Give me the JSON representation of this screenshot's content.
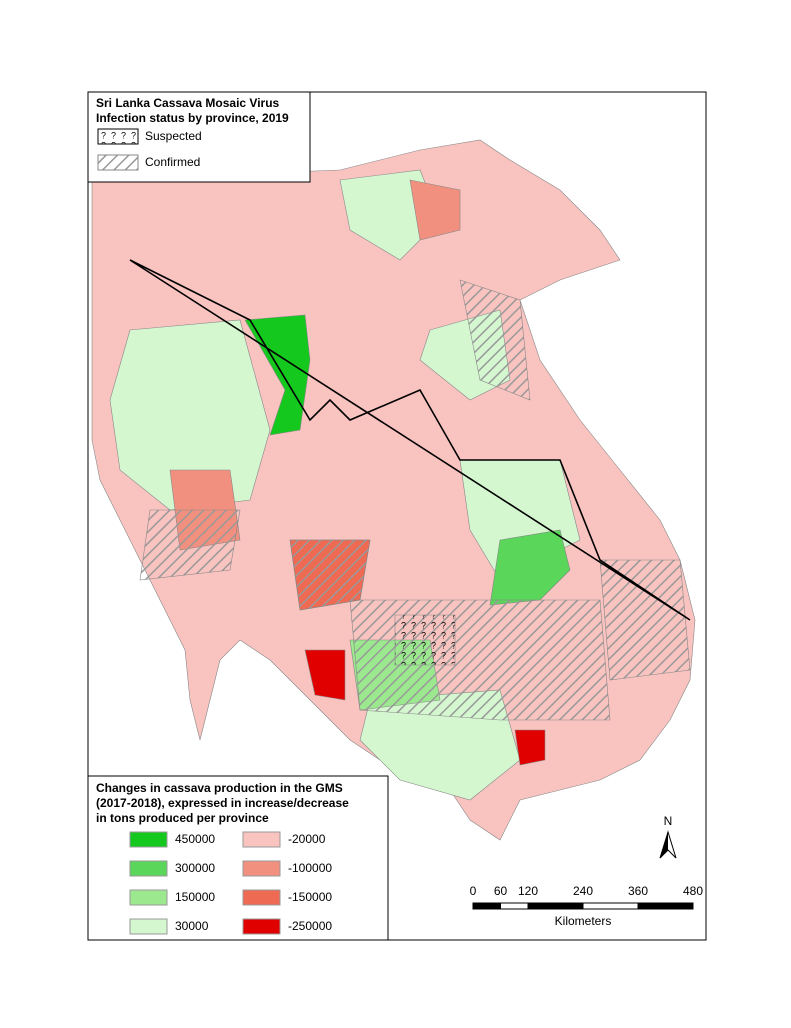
{
  "infection_legend": {
    "title_lines": [
      "Sri Lanka Cassava Mosaic Virus",
      "Infection status by province, 2019"
    ],
    "items": [
      {
        "label": "Suspected"
      },
      {
        "label": "Confirmed"
      }
    ]
  },
  "production_legend": {
    "title_lines": [
      "Changes in cassava production in the GMS",
      "(2017-2018), expressed in increase/decrease",
      "in tons produced per province"
    ],
    "items": [
      {
        "label": "450000",
        "color": "#14c81e"
      },
      {
        "label": "300000",
        "color": "#5ad65a"
      },
      {
        "label": "150000",
        "color": "#9be88f"
      },
      {
        "label": "30000",
        "color": "#d4f7d0"
      },
      {
        "label": "-20000",
        "color": "#f9c3c0"
      },
      {
        "label": "-100000",
        "color": "#f2907f"
      },
      {
        "label": "-150000",
        "color": "#ef6a52"
      },
      {
        "label": "-250000",
        "color": "#e00000"
      }
    ]
  },
  "north_arrow": {
    "label": "N"
  },
  "scale_bar": {
    "ticks": [
      0,
      60,
      120,
      240,
      360,
      480
    ],
    "unit": "Kilometers"
  }
}
